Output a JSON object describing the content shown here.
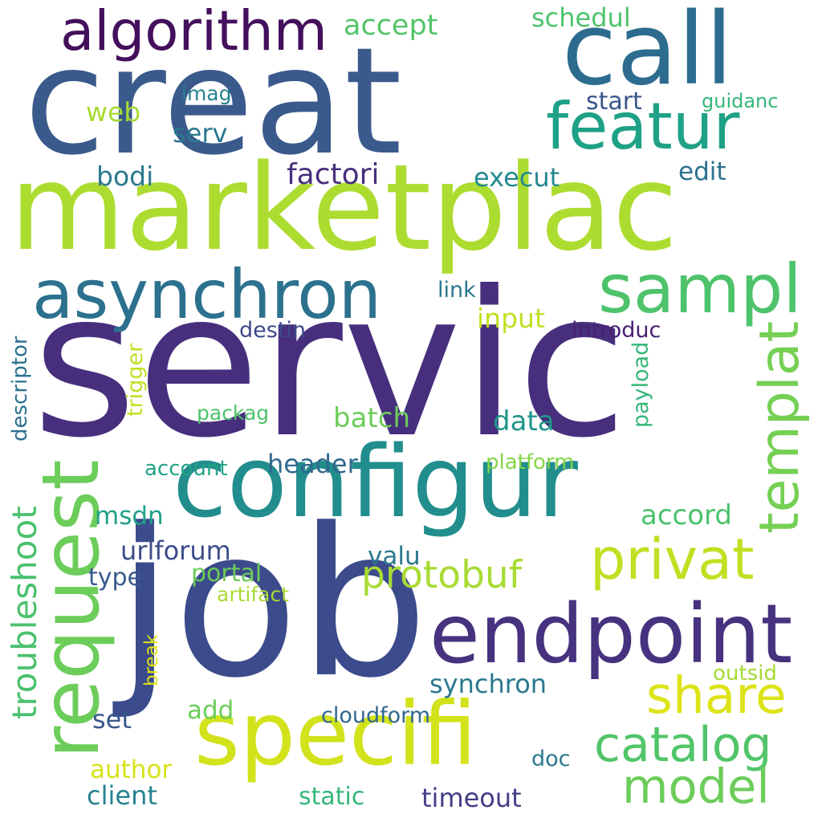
{
  "word_cloud": {
    "words": [
      {
        "text": "servic",
        "color": "#472f7d"
      },
      {
        "text": "creat",
        "color": "#3b5a8c"
      },
      {
        "text": "job",
        "color": "#3b4b8b"
      },
      {
        "text": "marketplac",
        "color": "#addc30"
      },
      {
        "text": "configur",
        "color": "#218e8d"
      },
      {
        "text": "call",
        "color": "#2d6c8e"
      },
      {
        "text": "endpoint",
        "color": "#46327e"
      },
      {
        "text": "specifi",
        "color": "#d2e21b"
      },
      {
        "text": "request",
        "color": "#6ccd5a"
      },
      {
        "text": "asynchron",
        "color": "#2c718e"
      },
      {
        "text": "featur",
        "color": "#1fa187"
      },
      {
        "text": "sampl",
        "color": "#4ec36b"
      },
      {
        "text": "algorithm",
        "color": "#440f5c"
      },
      {
        "text": "privat",
        "color": "#c2df23"
      },
      {
        "text": "templat",
        "color": "#75d054"
      },
      {
        "text": "share",
        "color": "#dde318"
      },
      {
        "text": "catalog",
        "color": "#52c569"
      },
      {
        "text": "model",
        "color": "#6ccd5a"
      },
      {
        "text": "protobuf",
        "color": "#a8db34"
      },
      {
        "text": "troubleshoot",
        "color": "#4ac16d"
      },
      {
        "text": "accept",
        "color": "#52c569"
      },
      {
        "text": "schedul",
        "color": "#4ec36b"
      },
      {
        "text": "web",
        "color": "#a8db34"
      },
      {
        "text": "imag",
        "color": "#26828e"
      },
      {
        "text": "start",
        "color": "#39568c"
      },
      {
        "text": "guidanc",
        "color": "#35b779"
      },
      {
        "text": "serv",
        "color": "#2a788e"
      },
      {
        "text": "bodi",
        "color": "#2a788e"
      },
      {
        "text": "factori",
        "color": "#472f7d"
      },
      {
        "text": "execut",
        "color": "#23898e"
      },
      {
        "text": "edit",
        "color": "#2c718e"
      },
      {
        "text": "link",
        "color": "#2a788e"
      },
      {
        "text": "input",
        "color": "#c2df23"
      },
      {
        "text": "destin",
        "color": "#3e4a89"
      },
      {
        "text": "introduc",
        "color": "#482173"
      },
      {
        "text": "descriptor",
        "color": "#2c718e"
      },
      {
        "text": "trigger",
        "color": "#c2df23"
      },
      {
        "text": "packag",
        "color": "#4ec36b"
      },
      {
        "text": "batch",
        "color": "#6ccd5a"
      },
      {
        "text": "data",
        "color": "#1f968b"
      },
      {
        "text": "payload",
        "color": "#35b779"
      },
      {
        "text": "account",
        "color": "#20a386"
      },
      {
        "text": "header",
        "color": "#31688e"
      },
      {
        "text": "platform",
        "color": "#86d549"
      },
      {
        "text": "msdn",
        "color": "#1fa187"
      },
      {
        "text": "accord",
        "color": "#4ac16d"
      },
      {
        "text": "urlforum",
        "color": "#3d4d8a"
      },
      {
        "text": "valu",
        "color": "#2a788e"
      },
      {
        "text": "type",
        "color": "#38598c"
      },
      {
        "text": "portal",
        "color": "#6ccd5a"
      },
      {
        "text": "artifact",
        "color": "#a8db34"
      },
      {
        "text": "break",
        "color": "#e1e418"
      },
      {
        "text": "outsid",
        "color": "#a8db34"
      },
      {
        "text": "synchron",
        "color": "#2a788e"
      },
      {
        "text": "add",
        "color": "#6ccd5a"
      },
      {
        "text": "set",
        "color": "#39568c"
      },
      {
        "text": "cloudform",
        "color": "#31688e"
      },
      {
        "text": "author",
        "color": "#d8e219"
      },
      {
        "text": "doc",
        "color": "#2a788e"
      },
      {
        "text": "client",
        "color": "#26828e"
      },
      {
        "text": "static",
        "color": "#35b779"
      },
      {
        "text": "timeout",
        "color": "#433e85"
      }
    ]
  }
}
